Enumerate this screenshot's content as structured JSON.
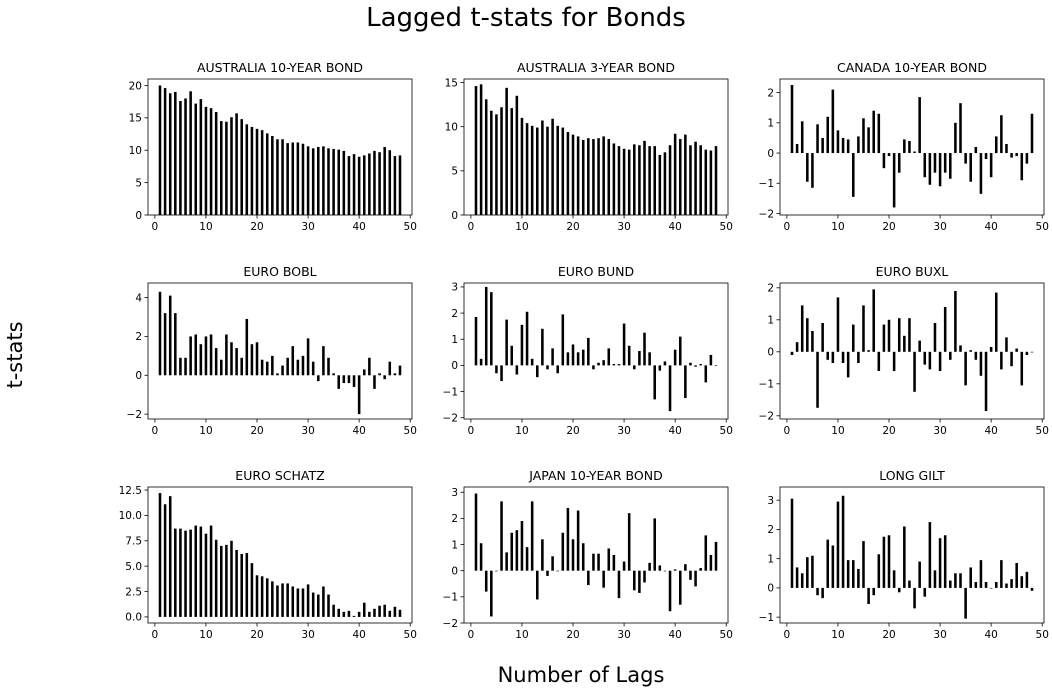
{
  "figure": {
    "title": "Lagged t-stats for Bonds",
    "xlabel": "Number of Lags",
    "ylabel": "t-stats"
  },
  "chart_data": [
    {
      "type": "bar",
      "title": "AUSTRALIA 10-YEAR BOND",
      "x": [
        1,
        2,
        3,
        4,
        5,
        6,
        7,
        8,
        9,
        10,
        11,
        12,
        13,
        14,
        15,
        16,
        17,
        18,
        19,
        20,
        21,
        22,
        23,
        24,
        25,
        26,
        27,
        28,
        29,
        30,
        31,
        32,
        33,
        34,
        35,
        36,
        37,
        38,
        39,
        40,
        41,
        42,
        43,
        44,
        45,
        46,
        47,
        48
      ],
      "values": [
        20.0,
        19.6,
        18.8,
        19.0,
        17.6,
        18.0,
        19.1,
        17.2,
        17.9,
        16.7,
        16.5,
        15.9,
        14.5,
        14.4,
        15.1,
        15.7,
        14.8,
        14.0,
        13.6,
        13.3,
        13.1,
        12.6,
        12.2,
        11.7,
        11.7,
        11.1,
        11.2,
        11.2,
        11.0,
        10.6,
        10.3,
        10.5,
        10.6,
        10.3,
        10.2,
        10.1,
        9.9,
        9.1,
        9.4,
        9.0,
        9.2,
        9.5,
        9.9,
        9.7,
        10.5,
        10.0,
        9.1,
        9.2
      ],
      "xlim": [
        -1.35,
        50.35
      ],
      "ylim": [
        0,
        21
      ],
      "xticks": [
        0,
        10,
        20,
        30,
        40,
        50
      ],
      "yticks": [
        0,
        5,
        10,
        15,
        20
      ]
    },
    {
      "type": "bar",
      "title": "AUSTRALIA 3-YEAR BOND",
      "x": [
        1,
        2,
        3,
        4,
        5,
        6,
        7,
        8,
        9,
        10,
        11,
        12,
        13,
        14,
        15,
        16,
        17,
        18,
        19,
        20,
        21,
        22,
        23,
        24,
        25,
        26,
        27,
        28,
        29,
        30,
        31,
        32,
        33,
        34,
        35,
        36,
        37,
        38,
        39,
        40,
        41,
        42,
        43,
        44,
        45,
        46,
        47,
        48
      ],
      "values": [
        14.6,
        14.8,
        13.1,
        11.8,
        11.4,
        12.2,
        14.4,
        12.1,
        13.5,
        11.0,
        10.4,
        10.1,
        9.9,
        10.7,
        10.0,
        10.9,
        10.1,
        9.9,
        9.4,
        9.1,
        8.9,
        8.5,
        8.7,
        8.6,
        8.7,
        8.9,
        8.6,
        8.1,
        7.8,
        7.5,
        7.4,
        8.0,
        7.9,
        8.4,
        7.8,
        7.8,
        6.8,
        7.1,
        7.9,
        9.2,
        8.6,
        9.1,
        7.9,
        8.3,
        7.9,
        7.4,
        7.3,
        7.8
      ],
      "xlim": [
        -1.35,
        50.35
      ],
      "ylim": [
        0,
        15.4
      ],
      "xticks": [
        0,
        10,
        20,
        30,
        40,
        50
      ],
      "yticks": [
        0,
        5,
        10,
        15
      ]
    },
    {
      "type": "bar",
      "title": "CANADA 10-YEAR BOND",
      "x": [
        1,
        2,
        3,
        4,
        5,
        6,
        7,
        8,
        9,
        10,
        11,
        12,
        13,
        14,
        15,
        16,
        17,
        18,
        19,
        20,
        21,
        22,
        23,
        24,
        25,
        26,
        27,
        28,
        29,
        30,
        31,
        32,
        33,
        34,
        35,
        36,
        37,
        38,
        39,
        40,
        41,
        42,
        43,
        44,
        45,
        46,
        47,
        48
      ],
      "values": [
        2.25,
        0.3,
        1.05,
        -0.95,
        -1.15,
        0.95,
        0.5,
        1.2,
        2.1,
        0.75,
        0.5,
        0.45,
        -1.45,
        0.55,
        1.15,
        0.85,
        1.4,
        1.3,
        -0.5,
        -0.1,
        -1.8,
        -0.65,
        0.45,
        0.4,
        0.05,
        1.85,
        -0.8,
        -1.05,
        -0.65,
        -1.1,
        -0.65,
        -0.85,
        1.0,
        1.65,
        -0.35,
        -0.95,
        0.2,
        -1.35,
        -0.2,
        -0.8,
        0.55,
        1.25,
        0.3,
        -0.15,
        -0.1,
        -0.9,
        -0.35,
        1.3
      ],
      "xlim": [
        -1.35,
        50.35
      ],
      "ylim": [
        -2.05,
        2.45
      ],
      "xticks": [
        0,
        10,
        20,
        30,
        40,
        50
      ],
      "yticks": [
        -2,
        -1,
        0,
        1,
        2
      ]
    },
    {
      "type": "bar",
      "title": "EURO BOBL",
      "x": [
        1,
        2,
        3,
        4,
        5,
        6,
        7,
        8,
        9,
        10,
        11,
        12,
        13,
        14,
        15,
        16,
        17,
        18,
        19,
        20,
        21,
        22,
        23,
        24,
        25,
        26,
        27,
        28,
        29,
        30,
        31,
        32,
        33,
        34,
        35,
        36,
        37,
        38,
        39,
        40,
        41,
        42,
        43,
        44,
        45,
        46,
        47,
        48
      ],
      "values": [
        4.3,
        3.2,
        4.1,
        3.2,
        0.9,
        0.9,
        2.0,
        2.1,
        1.6,
        2.0,
        2.1,
        1.4,
        0.8,
        2.1,
        1.7,
        1.4,
        0.9,
        2.9,
        1.6,
        1.7,
        0.8,
        0.7,
        1.0,
        0.1,
        0.5,
        0.9,
        1.5,
        0.8,
        1.0,
        1.9,
        0.7,
        -0.3,
        1.5,
        0.9,
        0.1,
        -0.7,
        -0.4,
        -0.4,
        -0.6,
        -2.0,
        0.3,
        0.9,
        -0.7,
        0.1,
        -0.2,
        0.7,
        0.1,
        0.5
      ],
      "xlim": [
        -1.35,
        50.35
      ],
      "ylim": [
        -2.25,
        4.75
      ],
      "xticks": [
        0,
        10,
        20,
        30,
        40,
        50
      ],
      "yticks": [
        -2,
        0,
        2,
        4
      ]
    },
    {
      "type": "bar",
      "title": "EURO BUND",
      "x": [
        1,
        2,
        3,
        4,
        5,
        6,
        7,
        8,
        9,
        10,
        11,
        12,
        13,
        14,
        15,
        16,
        17,
        18,
        19,
        20,
        21,
        22,
        23,
        24,
        25,
        26,
        27,
        28,
        29,
        30,
        31,
        32,
        33,
        34,
        35,
        36,
        37,
        38,
        39,
        40,
        41,
        42,
        43,
        44,
        45,
        46,
        47,
        48
      ],
      "values": [
        1.85,
        0.25,
        3.0,
        2.8,
        -0.3,
        -0.6,
        1.75,
        0.75,
        -0.35,
        1.55,
        2.05,
        0.25,
        -0.45,
        1.4,
        -0.15,
        0.65,
        -0.3,
        1.95,
        0.5,
        0.8,
        0.5,
        0.6,
        1.05,
        -0.15,
        0.1,
        0.2,
        0.65,
        0.05,
        0.05,
        1.6,
        0.75,
        -0.15,
        0.55,
        1.25,
        0.5,
        -1.3,
        -0.2,
        0.15,
        -1.75,
        0.6,
        1.1,
        -1.25,
        0.1,
        -0.05,
        0.05,
        -0.65,
        0.4,
        0.0
      ],
      "xlim": [
        -1.35,
        50.35
      ],
      "ylim": [
        -2.05,
        3.15
      ],
      "xticks": [
        0,
        10,
        20,
        30,
        40,
        50
      ],
      "yticks": [
        -2,
        -1,
        0,
        1,
        2,
        3
      ]
    },
    {
      "type": "bar",
      "title": "EURO BUXL",
      "x": [
        1,
        2,
        3,
        4,
        5,
        6,
        7,
        8,
        9,
        10,
        11,
        12,
        13,
        14,
        15,
        16,
        17,
        18,
        19,
        20,
        21,
        22,
        23,
        24,
        25,
        26,
        27,
        28,
        29,
        30,
        31,
        32,
        33,
        34,
        35,
        36,
        37,
        38,
        39,
        40,
        41,
        42,
        43,
        44,
        45,
        46,
        47,
        48
      ],
      "values": [
        -0.1,
        0.3,
        1.45,
        1.05,
        0.65,
        -1.75,
        0.9,
        -0.25,
        -0.35,
        1.7,
        -0.35,
        -0.8,
        0.85,
        -0.35,
        1.45,
        0.05,
        1.95,
        -0.6,
        0.85,
        1.0,
        -0.6,
        1.05,
        0.5,
        1.05,
        -1.25,
        0.35,
        -0.4,
        -0.55,
        0.9,
        -0.6,
        1.4,
        -0.25,
        1.9,
        0.2,
        -1.05,
        0.05,
        -0.25,
        -0.75,
        -1.85,
        0.15,
        1.85,
        -0.55,
        0.45,
        -0.45,
        0.1,
        -1.05,
        -0.1,
        0.0
      ],
      "xlim": [
        -1.35,
        50.35
      ],
      "ylim": [
        -2.1,
        2.15
      ],
      "xticks": [
        0,
        10,
        20,
        30,
        40,
        50
      ],
      "yticks": [
        -2,
        -1,
        0,
        1,
        2
      ]
    },
    {
      "type": "bar",
      "title": "EURO SCHATZ",
      "x": [
        1,
        2,
        3,
        4,
        5,
        6,
        7,
        8,
        9,
        10,
        11,
        12,
        13,
        14,
        15,
        16,
        17,
        18,
        19,
        20,
        21,
        22,
        23,
        24,
        25,
        26,
        27,
        28,
        29,
        30,
        31,
        32,
        33,
        34,
        35,
        36,
        37,
        38,
        39,
        40,
        41,
        42,
        43,
        44,
        45,
        46,
        47,
        48
      ],
      "values": [
        12.2,
        11.1,
        11.9,
        8.7,
        8.7,
        8.5,
        8.6,
        9.0,
        8.9,
        8.2,
        9.0,
        7.6,
        7.0,
        7.1,
        7.5,
        6.6,
        6.2,
        6.3,
        5.3,
        4.1,
        4.0,
        3.8,
        3.5,
        3.1,
        3.3,
        3.3,
        3.0,
        2.8,
        2.8,
        3.2,
        2.4,
        2.2,
        3.0,
        2.2,
        1.2,
        0.8,
        0.5,
        0.6,
        0.1,
        0.5,
        1.4,
        0.5,
        0.8,
        1.1,
        1.2,
        0.6,
        1.0,
        0.7
      ],
      "xlim": [
        -1.35,
        50.35
      ],
      "ylim": [
        -0.6,
        12.8
      ],
      "xticks": [
        0,
        10,
        20,
        30,
        40,
        50
      ],
      "yticks": [
        0.0,
        2.5,
        5.0,
        7.5,
        10.0,
        12.5
      ],
      "yticks_labels": [
        "0.0",
        "2.5",
        "5.0",
        "7.5",
        "10.0",
        "12.5"
      ]
    },
    {
      "type": "bar",
      "title": "JAPAN 10-YEAR BOND",
      "x": [
        1,
        2,
        3,
        4,
        5,
        6,
        7,
        8,
        9,
        10,
        11,
        12,
        13,
        14,
        15,
        16,
        17,
        18,
        19,
        20,
        21,
        22,
        23,
        24,
        25,
        26,
        27,
        28,
        29,
        30,
        31,
        32,
        33,
        34,
        35,
        36,
        37,
        38,
        39,
        40,
        41,
        42,
        43,
        44,
        45,
        46,
        47,
        48
      ],
      "values": [
        2.95,
        1.05,
        -0.8,
        -1.75,
        0.0,
        2.65,
        0.7,
        1.45,
        1.55,
        1.9,
        0.9,
        2.65,
        -1.1,
        1.2,
        -0.2,
        0.55,
        0.0,
        1.45,
        2.4,
        1.2,
        2.3,
        1.05,
        -0.55,
        0.65,
        0.65,
        -0.65,
        0.85,
        0.6,
        -1.05,
        0.35,
        2.2,
        -0.75,
        -0.85,
        -0.45,
        0.3,
        2.0,
        0.2,
        0.0,
        -1.55,
        0.05,
        -1.3,
        0.25,
        -0.35,
        -0.6,
        0.1,
        1.35,
        0.6,
        1.1
      ],
      "xlim": [
        -1.35,
        50.35
      ],
      "ylim": [
        -2.0,
        3.2
      ],
      "xticks": [
        0,
        10,
        20,
        30,
        40,
        50
      ],
      "yticks": [
        -2,
        -1,
        0,
        1,
        2,
        3
      ]
    },
    {
      "type": "bar",
      "title": "LONG GILT",
      "x": [
        1,
        2,
        3,
        4,
        5,
        6,
        7,
        8,
        9,
        10,
        11,
        12,
        13,
        14,
        15,
        16,
        17,
        18,
        19,
        20,
        21,
        22,
        23,
        24,
        25,
        26,
        27,
        28,
        29,
        30,
        31,
        32,
        33,
        34,
        35,
        36,
        37,
        38,
        39,
        40,
        41,
        42,
        43,
        44,
        45,
        46,
        47,
        48
      ],
      "values": [
        3.05,
        0.7,
        0.5,
        1.05,
        1.1,
        -0.25,
        -0.35,
        1.65,
        1.45,
        2.95,
        3.15,
        0.95,
        0.95,
        0.65,
        1.6,
        -0.55,
        -0.25,
        1.15,
        1.75,
        1.8,
        0.6,
        -0.15,
        2.1,
        0.25,
        -0.7,
        0.9,
        -0.3,
        2.25,
        0.6,
        1.7,
        1.8,
        0.25,
        0.5,
        0.5,
        -1.05,
        0.7,
        0.2,
        0.95,
        0.2,
        0.0,
        0.2,
        0.95,
        0.15,
        0.3,
        0.85,
        0.4,
        0.55,
        -0.1
      ],
      "xlim": [
        -1.35,
        50.35
      ],
      "ylim": [
        -1.2,
        3.45
      ],
      "xticks": [
        0,
        10,
        20,
        30,
        40,
        50
      ],
      "yticks": [
        -1,
        0,
        1,
        2,
        3
      ]
    }
  ]
}
